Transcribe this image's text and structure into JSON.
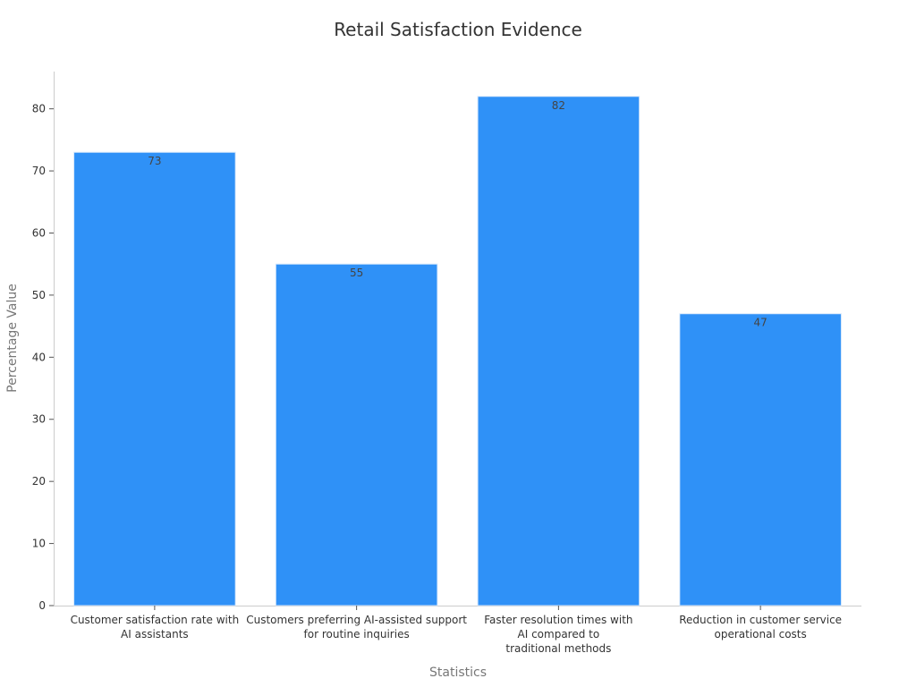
{
  "chart_data": {
    "type": "bar",
    "title": "Retail Satisfaction Evidence",
    "xlabel": "Statistics",
    "ylabel": "Percentage Value",
    "categories": [
      "Customer satisfaction rate with AI assistants",
      "Customers preferring AI-assisted support for routine inquiries",
      "Faster resolution times with AI compared to traditional methods",
      "Reduction in customer service operational costs"
    ],
    "category_lines": [
      [
        "Customer satisfaction rate with",
        "AI assistants"
      ],
      [
        "Customers preferring AI-assisted support",
        "for routine inquiries"
      ],
      [
        "Faster resolution times with",
        "AI compared to",
        "traditional methods"
      ],
      [
        "Reduction in customer service",
        "operational costs"
      ]
    ],
    "values": [
      73,
      55,
      82,
      47
    ],
    "ylim": [
      0,
      86
    ],
    "yticks": [
      0,
      10,
      20,
      30,
      40,
      50,
      60,
      70,
      80
    ],
    "grid": false,
    "data_labels": true,
    "bar_color": "#2f91f7"
  }
}
